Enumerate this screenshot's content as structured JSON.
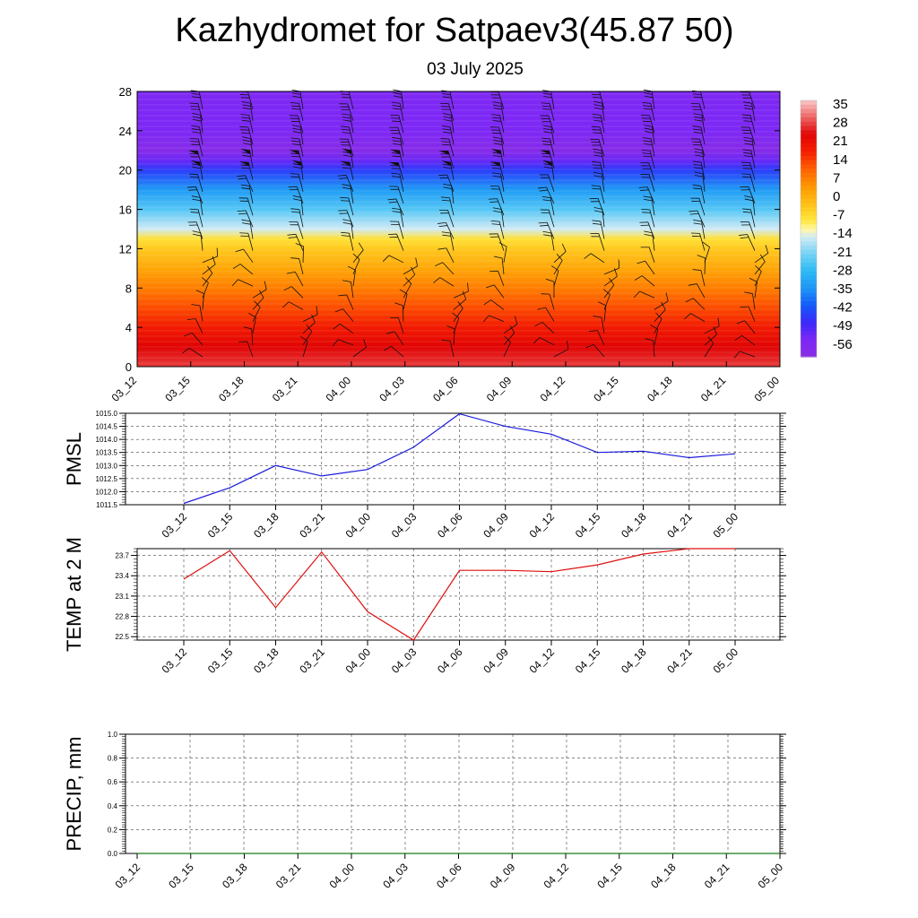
{
  "title": "Kazhydromet for Satpaev3(45.87 50)",
  "subtitle": "03 July 2025",
  "colors": {
    "pmsl_line": "#1a1adc",
    "temp_line": "#e01010",
    "precip_line": "#1a7a1a",
    "grid": "#555555"
  },
  "chart_data": [
    {
      "type": "heatmap",
      "id": "vertical-section",
      "x": [
        "03_12",
        "03_15",
        "03_18",
        "03_21",
        "04_00",
        "04_03",
        "04_06",
        "04_09",
        "04_12",
        "04_15",
        "04_18",
        "04_21",
        "05_00"
      ],
      "y_ticks": [
        0,
        4,
        8,
        12,
        16,
        20,
        24,
        28
      ],
      "ylim": [
        0,
        28
      ],
      "colorbar_ticks": [
        35,
        28,
        21,
        14,
        7,
        0,
        -7,
        -14,
        -21,
        -28,
        -35,
        -42,
        -49,
        -56
      ],
      "colorbar_range": [
        -63,
        42
      ],
      "temperature_profile": {
        "heights": [
          0,
          2,
          4,
          6,
          8,
          10,
          12,
          13,
          14,
          16,
          18,
          20,
          21,
          22,
          24,
          26,
          28
        ],
        "values": [
          32,
          28,
          22,
          16,
          10,
          4,
          -2,
          -6,
          -14,
          -24,
          -34,
          -46,
          -54,
          -62,
          -56,
          -56,
          -57
        ]
      },
      "wind_barbs": "present"
    },
    {
      "type": "line",
      "id": "pmsl",
      "ylabel": "PMSL",
      "x": [
        "03_12",
        "03_15",
        "03_18",
        "03_21",
        "04_00",
        "04_03",
        "04_06",
        "04_09",
        "04_12",
        "04_15",
        "04_18",
        "04_21",
        "05_00"
      ],
      "y_ticks": [
        "1011.5",
        "1012.0",
        "1012.5",
        "1013.0",
        "1013.5",
        "1014.0",
        "1014.5",
        "1015.0"
      ],
      "ylim": [
        1011.5,
        1015.0
      ],
      "values": [
        1011.55,
        1012.15,
        1013.0,
        1012.6,
        1012.85,
        1013.7,
        1014.98,
        1014.5,
        1014.2,
        1013.5,
        1013.55,
        1013.3,
        1013.45
      ],
      "grid": true
    },
    {
      "type": "line",
      "id": "temp2m",
      "ylabel": "TEMP at 2 M",
      "x": [
        "03_12",
        "03_15",
        "03_18",
        "03_21",
        "04_00",
        "04_03",
        "04_06",
        "04_09",
        "04_12",
        "04_15",
        "04_18",
        "04_21",
        "05_00"
      ],
      "y_ticks": [
        "22.5",
        "22.8",
        "23.1",
        "23.4",
        "23.7"
      ],
      "ylim": [
        22.45,
        23.8
      ],
      "values": [
        23.35,
        23.77,
        22.93,
        23.75,
        22.87,
        22.45,
        23.48,
        23.48,
        23.46,
        23.56,
        23.72,
        23.8,
        23.8
      ],
      "grid": true
    },
    {
      "type": "line",
      "id": "precip",
      "ylabel": "PRECIP, mm",
      "x": [
        "03_12",
        "03_15",
        "03_18",
        "03_21",
        "04_00",
        "04_03",
        "04_06",
        "04_09",
        "04_12",
        "04_15",
        "04_18",
        "04_21",
        "05_00"
      ],
      "y_ticks": [
        "0.0",
        "0.2",
        "0.4",
        "0.6",
        "0.8",
        "1.0"
      ],
      "ylim": [
        0.0,
        1.0
      ],
      "values": [
        0,
        0,
        0,
        0,
        0,
        0,
        0,
        0,
        0,
        0,
        0,
        0,
        0
      ],
      "grid": true
    }
  ]
}
